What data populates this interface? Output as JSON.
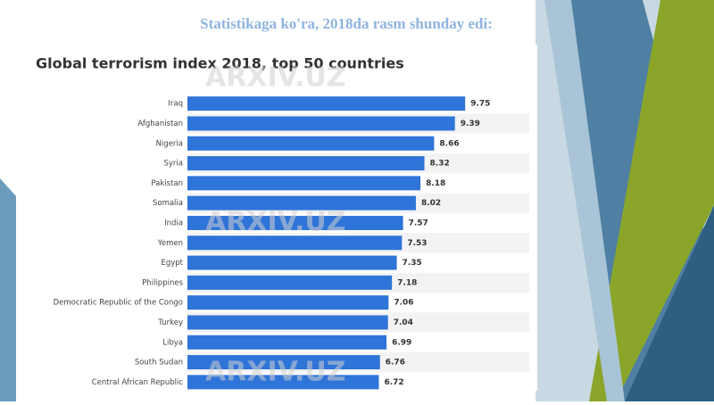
{
  "slide": {
    "heading": "Statistikaga ko'ra, 2018da rasm shunday edi:",
    "watermark": "ARXIV.UZ"
  },
  "chart_data": {
    "type": "bar",
    "orientation": "horizontal",
    "title": "Global terrorism index 2018, top 50 countries",
    "categories": [
      "Iraq",
      "Afghanistan",
      "Nigeria",
      "Syria",
      "Pakistan",
      "Somalia",
      "India",
      "Yemen",
      "Egypt",
      "Philippines",
      "Democratic Republic of the Congo",
      "Turkey",
      "Libya",
      "South Sudan",
      "Central African Republic"
    ],
    "values": [
      9.75,
      9.39,
      8.66,
      8.32,
      8.18,
      8.02,
      7.57,
      7.53,
      7.35,
      7.18,
      7.06,
      7.04,
      6.99,
      6.76,
      6.72
    ],
    "color": "#2f74d8",
    "xlim": [
      0,
      12
    ]
  }
}
